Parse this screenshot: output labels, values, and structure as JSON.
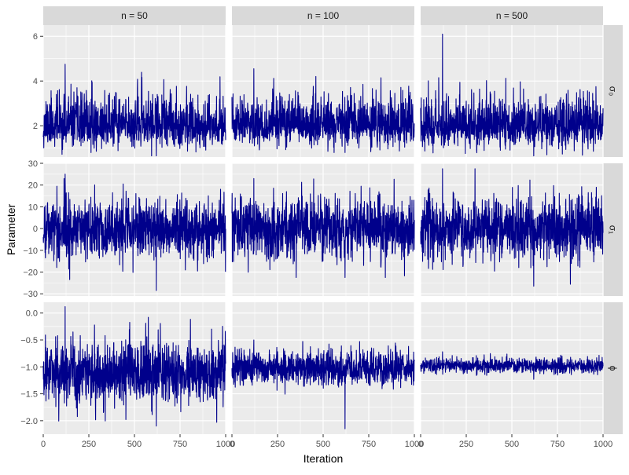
{
  "chart_data": {
    "type": "line",
    "title": "",
    "xlabel": "Iteration",
    "ylabel": "Parameter",
    "facet_columns": [
      "n = 50",
      "n = 100",
      "n = 500"
    ],
    "facet_rows": [
      "σ₀",
      "σ₁",
      "ϕ"
    ],
    "xlim": [
      0,
      1000
    ],
    "x_ticks": [
      0,
      250,
      500,
      750,
      1000
    ],
    "x_tick_labels": [
      "0",
      "250",
      "500",
      "750",
      "1000"
    ],
    "row_scales": [
      {
        "ylim": [
          0.6,
          6.5
        ],
        "ticks": [
          2,
          4,
          6
        ],
        "tick_labels": [
          "2",
          "4",
          "6"
        ]
      },
      {
        "ylim": [
          -31,
          30
        ],
        "ticks": [
          -30,
          -20,
          -10,
          0,
          10,
          20,
          30
        ],
        "tick_labels": [
          "−30",
          "−20",
          "−10",
          "0",
          "10",
          "20",
          "30"
        ]
      },
      {
        "ylim": [
          -2.25,
          0.2
        ],
        "ticks": [
          -2.0,
          -1.5,
          -1.0,
          -0.5,
          0.0
        ],
        "tick_labels": [
          "−2.0",
          "−1.5",
          "−1.0",
          "−0.5",
          "0.0"
        ]
      }
    ],
    "line_color": "#00008B",
    "panel_background": "#EBEBEB",
    "strip_background": "#D9D9D9",
    "grid": true,
    "n_iterations": 1000,
    "traces": [
      {
        "row": 0,
        "col": 0,
        "center": 2.0,
        "spread": 0.45,
        "skew": 0.9,
        "min": 0.65,
        "max": 4.75,
        "seed": 11
      },
      {
        "row": 0,
        "col": 1,
        "center": 2.0,
        "spread": 0.42,
        "skew": 0.9,
        "min": 0.8,
        "max": 4.55,
        "seed": 23
      },
      {
        "row": 0,
        "col": 2,
        "center": 2.0,
        "spread": 0.45,
        "skew": 0.9,
        "min": 0.65,
        "max": 6.1,
        "seed": 37
      },
      {
        "row": 1,
        "col": 0,
        "center": 0.0,
        "spread": 7.0,
        "skew": 0.0,
        "min": -28.5,
        "max": 25.0,
        "seed": 41
      },
      {
        "row": 1,
        "col": 1,
        "center": 0.0,
        "spread": 7.0,
        "skew": 0.0,
        "min": -22.5,
        "max": 23.0,
        "seed": 53
      },
      {
        "row": 1,
        "col": 2,
        "center": 0.0,
        "spread": 7.0,
        "skew": 0.0,
        "min": -26.5,
        "max": 27.5,
        "seed": 67
      },
      {
        "row": 2,
        "col": 0,
        "center": -1.1,
        "spread": 0.3,
        "skew": 0.0,
        "min": -2.1,
        "max": 0.12,
        "seed": 71
      },
      {
        "row": 2,
        "col": 1,
        "center": -1.02,
        "spread": 0.17,
        "skew": 0.0,
        "min": -2.15,
        "max": -0.5,
        "seed": 83
      },
      {
        "row": 2,
        "col": 2,
        "center": -0.98,
        "spread": 0.07,
        "skew": 0.0,
        "min": -1.23,
        "max": -0.72,
        "seed": 97
      }
    ]
  }
}
